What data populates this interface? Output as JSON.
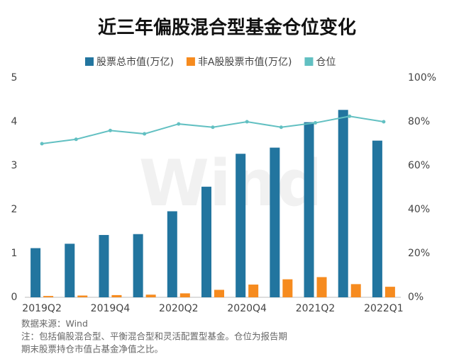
{
  "chart_data": {
    "type": "bar_line",
    "title": "近三年偏股混合型基金仓位变化",
    "watermark": "Wind",
    "categories": [
      "2019Q2",
      null,
      "2019Q4",
      null,
      "2020Q2",
      null,
      "2020Q4",
      null,
      "2021Q2",
      null,
      "2022Q1"
    ],
    "series": [
      {
        "name": "股票总市值(万亿)",
        "color": "#22759f",
        "type": "bar",
        "values": [
          1.12,
          1.22,
          1.42,
          1.44,
          1.96,
          2.52,
          3.27,
          3.41,
          3.99,
          4.27,
          3.57
        ]
      },
      {
        "name": "非A股股票市值(万亿)",
        "color": "#f68b1f",
        "type": "bar",
        "values": [
          0.03,
          0.04,
          0.05,
          0.06,
          0.09,
          0.17,
          0.29,
          0.41,
          0.46,
          0.3,
          0.24
        ]
      },
      {
        "name": "仓位",
        "color": "#62c0c2",
        "type": "line",
        "axis": "y2",
        "values": [
          70,
          72,
          76,
          74.5,
          79,
          77.5,
          80,
          77.5,
          79.5,
          82.5,
          80
        ]
      }
    ],
    "ylim": [
      0,
      5
    ],
    "yticks": [
      0,
      1,
      2,
      3,
      4,
      5
    ],
    "y2lim": [
      0,
      100
    ],
    "y2ticks": [
      {
        "value": 0,
        "label": "0%"
      },
      {
        "value": 20,
        "label": "20%"
      },
      {
        "value": 40,
        "label": "40%"
      },
      {
        "value": 60,
        "label": "60%"
      },
      {
        "value": 80,
        "label": "80%"
      },
      {
        "value": 100,
        "label": "100%"
      }
    ],
    "notes": [
      "数据来源：Wind",
      "注：包括偏股混合型、平衡混合型和灵活配置型基金。仓位为报告期",
      "期末股票持仓市值占基金净值之比。"
    ]
  }
}
